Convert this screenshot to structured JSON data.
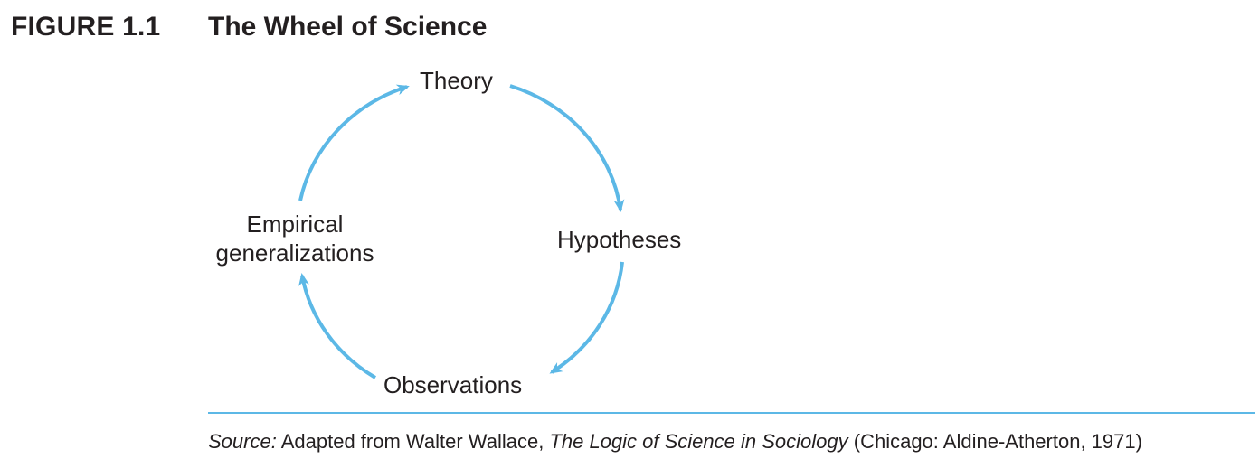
{
  "figure": {
    "number": "FIGURE 1.1",
    "title": "The Wheel of Science"
  },
  "diagram": {
    "nodes": {
      "theory": "Theory",
      "hypotheses": "Hypotheses",
      "observations": "Observations",
      "empirical_line1": "Empirical",
      "empirical_line2": "generalizations"
    },
    "arrow_color": "#5cb8e6"
  },
  "source": {
    "label": "Source:",
    "text1": " Adapted from Walter Wallace, ",
    "book_title": "The Logic of Science in Sociology",
    "text2": " (Chicago: Aldine-Atherton, 1971)"
  }
}
